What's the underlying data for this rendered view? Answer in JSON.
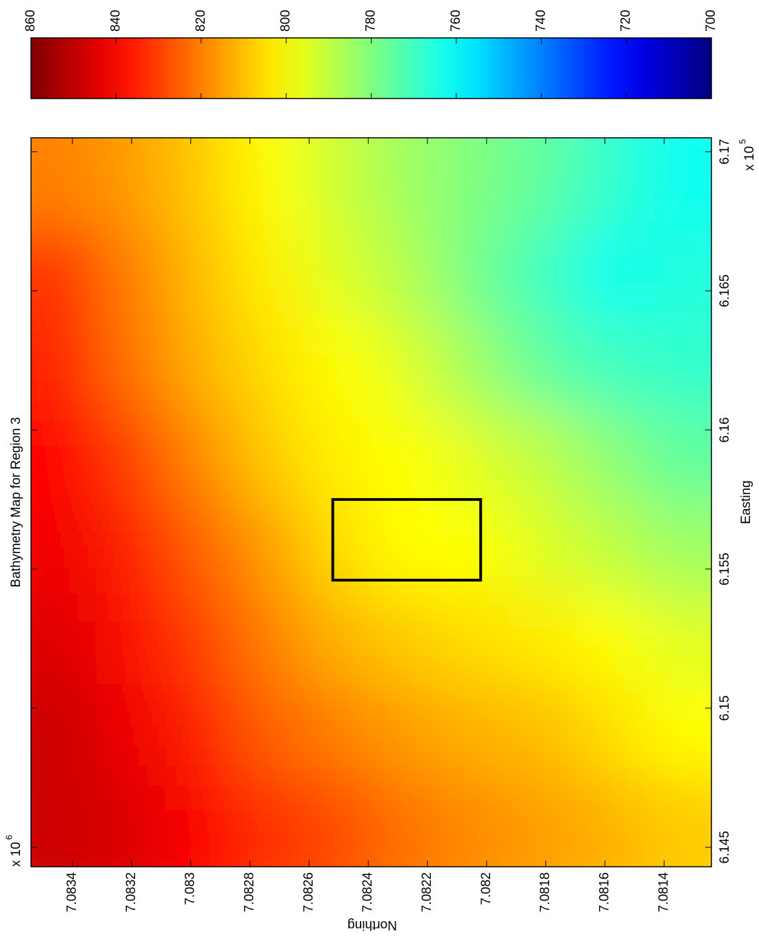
{
  "chart_data": {
    "type": "contourf",
    "title": "Bathymetry Map for Region 3",
    "x_label": "Easting",
    "y_label": "Northing",
    "x_multiplier": {
      "base": "x 10",
      "exponent": 5
    },
    "y_multiplier": {
      "base": "x 10",
      "exponent": 6
    },
    "xlim": [
      6.1443,
      6.1705
    ],
    "ylim": [
      7.08124,
      7.08354
    ],
    "xticks": [
      6.145,
      6.15,
      6.155,
      6.16,
      6.165,
      6.17
    ],
    "yticks": [
      7.0814,
      7.0816,
      7.0818,
      7.082,
      7.0822,
      7.0824,
      7.0826,
      7.0828,
      7.083,
      7.0832,
      7.0834
    ],
    "clim": [
      700,
      860
    ],
    "cticks": [
      700,
      720,
      740,
      760,
      780,
      800,
      820,
      840,
      860
    ],
    "colormap": "jet",
    "grid": {
      "easting": [
        6.1688,
        6.1655,
        6.1623,
        6.159,
        6.1557,
        6.1525,
        6.1492,
        6.1459
      ],
      "northing": [
        7.08343,
        7.08319,
        7.08296,
        7.08273,
        7.0825,
        7.08227,
        7.08204,
        7.08181,
        7.08158,
        7.08135
      ],
      "depth": [
        [
          820,
          815,
          808,
          800,
          792,
          785,
          780,
          775,
          768,
          762
        ],
        [
          832,
          820,
          810,
          802,
          795,
          788,
          778,
          770,
          762,
          765
        ],
        [
          835,
          822,
          812,
          805,
          800,
          795,
          785,
          775,
          770,
          768
        ],
        [
          840,
          830,
          818,
          808,
          802,
          800,
          795,
          790,
          782,
          775
        ],
        [
          842,
          835,
          825,
          815,
          805,
          800,
          800,
          795,
          790,
          785
        ],
        [
          845,
          838,
          830,
          820,
          812,
          808,
          805,
          803,
          800,
          795
        ],
        [
          848,
          842,
          835,
          825,
          820,
          815,
          812,
          810,
          805,
          800
        ],
        [
          848,
          845,
          840,
          832,
          828,
          822,
          818,
          815,
          812,
          808
        ]
      ]
    },
    "highlight_box": {
      "xlim": [
        6.1546,
        6.1575
      ],
      "ylim": [
        7.08202,
        7.08252
      ]
    }
  }
}
